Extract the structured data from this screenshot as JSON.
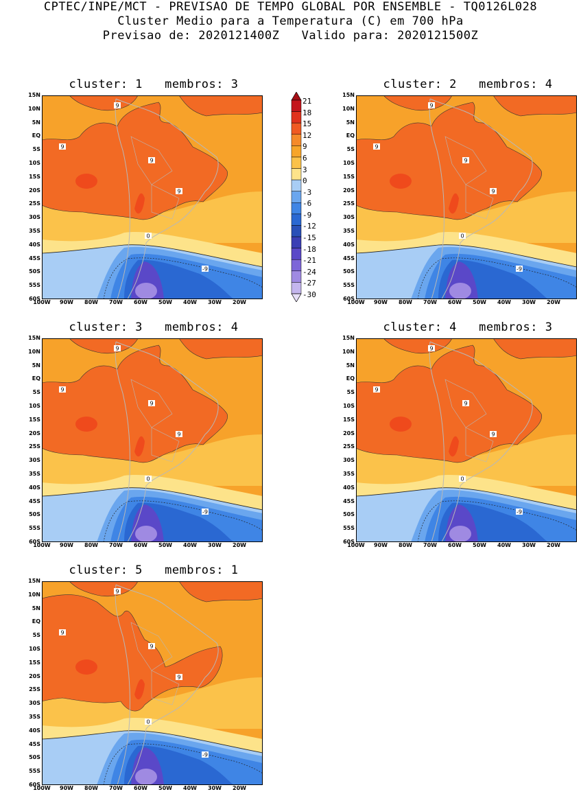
{
  "header": {
    "line1": "CPTEC/INPE/MCT - PREVISAO DE TEMPO GLOBAL POR ENSEMBLE - TQ0126L028",
    "line2": "Cluster Medio para a Temperatura (C) em 700 hPa",
    "line3": "Previsao de: 2020121400Z   Valido para: 2020121500Z"
  },
  "axes": {
    "lat_labels": [
      "15N",
      "10N",
      "5N",
      "EQ",
      "5S",
      "10S",
      "15S",
      "20S",
      "25S",
      "30S",
      "35S",
      "40S",
      "45S",
      "50S",
      "55S",
      "60S"
    ],
    "lon_labels": [
      "100W",
      "90W",
      "80W",
      "70W",
      "60W",
      "50W",
      "40W",
      "30W",
      "20W"
    ]
  },
  "colorbar": {
    "levels": [
      "21",
      "18",
      "15",
      "12",
      "9",
      "6",
      "3",
      "0",
      "-3",
      "-6",
      "-9",
      "-12",
      "-15",
      "-18",
      "-21",
      "-24",
      "-27",
      "-30"
    ],
    "colors": [
      "#a50f15",
      "#c4161c",
      "#e0321c",
      "#f05a22",
      "#f58a2a",
      "#f7a52a",
      "#fbc24a",
      "#fde38a",
      "#a8cdf5",
      "#6aa6ee",
      "#3f85e5",
      "#2a68d2",
      "#2950b8",
      "#3b3fb5",
      "#5a48c8",
      "#7d66d8",
      "#9f8ae2",
      "#c4b6ee",
      "#e6dff7"
    ]
  },
  "panels": [
    {
      "title": "cluster: 1   membros: 3"
    },
    {
      "title": "cluster: 2   membros: 4"
    },
    {
      "title": "cluster: 3   membros: 4"
    },
    {
      "title": "cluster: 4   membros: 3"
    },
    {
      "title": "cluster: 5   membros: 1"
    }
  ],
  "contour_labels": {
    "warm": "9",
    "zero": "0",
    "cold": "-9"
  },
  "colors": {
    "deep_warm": "#ef4a1c",
    "warm": "#f26a24",
    "orange": "#f7a22a",
    "light_orange": "#fbc24a",
    "yellow": "#fde38a",
    "light_blue": "#a8cdf5",
    "blue": "#6aa6ee",
    "mid_blue": "#3f85e5",
    "deep_blue": "#2a68d2",
    "navy": "#2950b8",
    "purple": "#5a48c8",
    "lilac": "#9f8ae2",
    "land_outline": "#b8b8b8"
  }
}
